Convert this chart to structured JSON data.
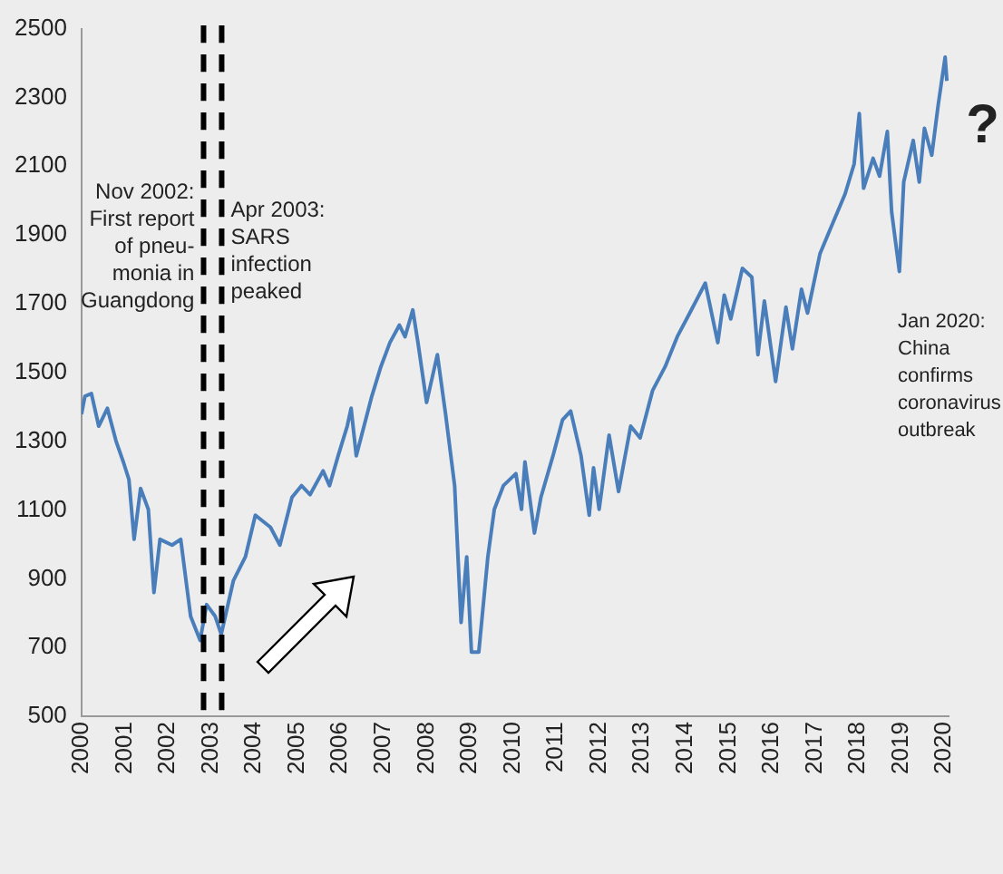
{
  "chart_data": {
    "type": "line",
    "x": [
      2000.0,
      2000.08,
      2000.23,
      2000.4,
      2000.6,
      2000.8,
      2000.97,
      2001.1,
      2001.22,
      2001.37,
      2001.55,
      2001.68,
      2001.82,
      2002.1,
      2002.3,
      2002.53,
      2002.75,
      2002.9,
      2003.1,
      2003.24,
      2003.52,
      2003.8,
      2004.03,
      2004.38,
      2004.6,
      2004.88,
      2005.1,
      2005.3,
      2005.6,
      2005.75,
      2005.95,
      2006.16,
      2006.25,
      2006.37,
      2006.73,
      2006.94,
      2007.15,
      2007.37,
      2007.5,
      2007.68,
      2007.8,
      2008.0,
      2008.25,
      2008.44,
      2008.65,
      2008.8,
      2008.93,
      2009.04,
      2009.21,
      2009.42,
      2009.57,
      2009.78,
      2010.07,
      2010.2,
      2010.28,
      2010.5,
      2010.65,
      2010.93,
      2011.15,
      2011.34,
      2011.58,
      2011.77,
      2011.87,
      2012.0,
      2012.23,
      2012.45,
      2012.73,
      2012.95,
      2013.24,
      2013.53,
      2013.81,
      2014.1,
      2014.46,
      2014.75,
      2014.9,
      2015.05,
      2015.32,
      2015.54,
      2015.68,
      2015.83,
      2016.09,
      2016.33,
      2016.48,
      2016.69,
      2016.83,
      2017.12,
      2017.41,
      2017.7,
      2017.91,
      2018.03,
      2018.13,
      2018.35,
      2018.5,
      2018.68,
      2018.78,
      2018.96,
      2019.06,
      2019.28,
      2019.42,
      2019.54,
      2019.71,
      2019.86,
      2020.02,
      2020.06
    ],
    "values": [
      1379,
      1431,
      1439,
      1344,
      1396,
      1301,
      1240,
      1189,
      1015,
      1163,
      1102,
      860,
      1015,
      998,
      1015,
      791,
      721,
      825,
      791,
      739,
      894,
      964,
      1085,
      1050,
      998,
      1137,
      1171,
      1145,
      1214,
      1171,
      1258,
      1344,
      1396,
      1258,
      1431,
      1517,
      1587,
      1638,
      1604,
      1682,
      1587,
      1413,
      1552,
      1379,
      1171,
      773,
      964,
      687,
      687,
      964,
      1102,
      1171,
      1206,
      1102,
      1240,
      1033,
      1137,
      1258,
      1362,
      1388,
      1258,
      1085,
      1223,
      1102,
      1318,
      1154,
      1344,
      1310,
      1448,
      1517,
      1604,
      1673,
      1760,
      1587,
      1725,
      1656,
      1803,
      1777,
      1552,
      1708,
      1474,
      1690,
      1569,
      1742,
      1673,
      1846,
      1933,
      2019,
      2106,
      2253,
      2036,
      2123,
      2071,
      2201,
      1967,
      1794,
      2054,
      2175,
      2054,
      2210,
      2132,
      2279,
      2417,
      2348
    ],
    "color": "#4a7ebb",
    "xlim": [
      2000,
      2020.1
    ],
    "xticks": [
      2000,
      2001,
      2002,
      2003,
      2004,
      2005,
      2006,
      2007,
      2008,
      2009,
      2010,
      2011,
      2012,
      2013,
      2014,
      2015,
      2016,
      2017,
      2018,
      2019,
      2020
    ],
    "ylim": [
      500,
      2500
    ],
    "yticks": [
      500,
      700,
      900,
      1100,
      1300,
      1500,
      1700,
      1900,
      2100,
      2300,
      2500
    ],
    "marker": "none",
    "line_style": "solid",
    "ref_lines": [
      {
        "axis": "x",
        "value": 2002.83,
        "label": "Nov 2002:\nFirst report\nof pneu-\nmonia in\nGuangdong",
        "color": "#000000",
        "line_style": "dashed"
      },
      {
        "axis": "x",
        "value": 2003.25,
        "label": "Apr 2003:\nSARS\ninfection\npeaked",
        "color": "#000000",
        "line_style": "dashed"
      }
    ],
    "annotations": [
      "Jan 2020:\nChina\nconfirms\ncoronavirus\noutbreak",
      "?"
    ]
  }
}
